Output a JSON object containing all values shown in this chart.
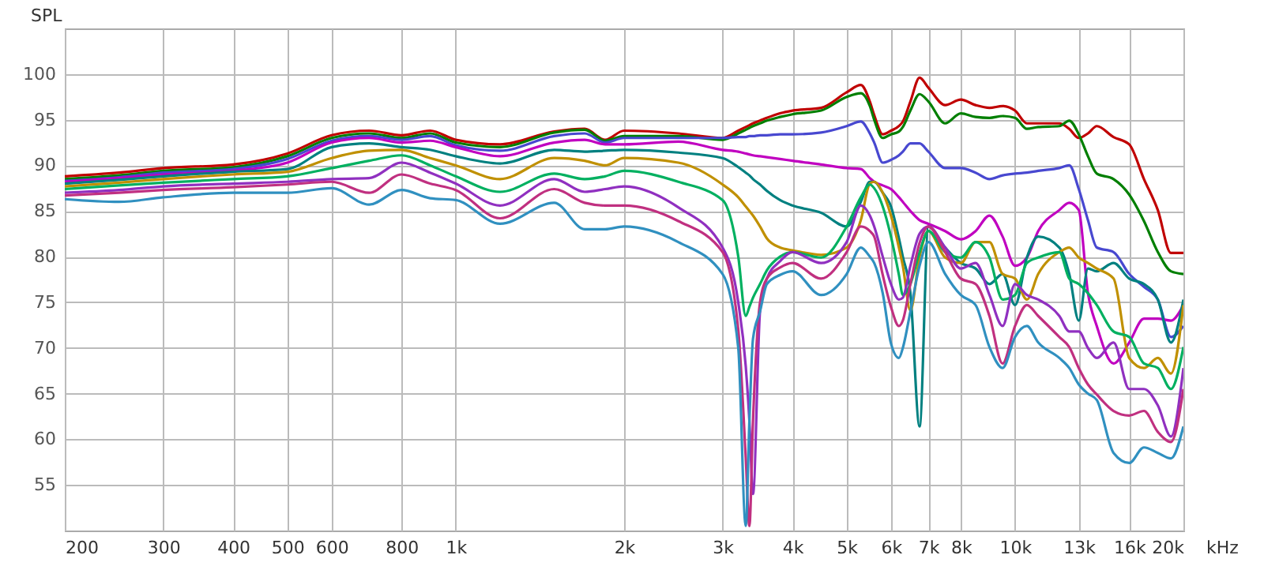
{
  "chart_data": {
    "type": "line",
    "ylabel": "SPL",
    "xlabel": "kHz",
    "log": "x",
    "grid": true,
    "marker": "none",
    "line_style": "solid",
    "xlim": [
      200,
      20000
    ],
    "ylim": [
      50,
      105
    ],
    "xticks": [
      200,
      300,
      400,
      500,
      600,
      800,
      {
        "value": 1000,
        "label": "1k"
      },
      {
        "value": 2000,
        "label": "2k"
      },
      {
        "value": 3000,
        "label": "3k"
      },
      {
        "value": 4000,
        "label": "4k"
      },
      {
        "value": 5000,
        "label": "5k"
      },
      {
        "value": 6000,
        "label": "6k"
      },
      {
        "value": 7000,
        "label": "7k"
      },
      {
        "value": 8000,
        "label": "8k"
      },
      {
        "value": 10000,
        "label": "10k"
      },
      {
        "value": 13000,
        "label": "13k"
      },
      {
        "value": 16000,
        "label": "16k"
      },
      {
        "value": 20000,
        "label": "20k"
      }
    ],
    "yticks": [
      55,
      60,
      65,
      70,
      75,
      80,
      85,
      90,
      95,
      100
    ],
    "x": [
      200,
      250,
      300,
      400,
      500,
      600,
      700,
      800,
      900,
      1000,
      1200,
      1500,
      1700,
      1850,
      2000,
      2500,
      3000,
      3200,
      3300,
      3350,
      3400,
      3500,
      3600,
      3800,
      4000,
      4500,
      5000,
      5300,
      5500,
      5600,
      5800,
      6000,
      6200,
      6300,
      6500,
      6750,
      7000,
      7500,
      8000,
      8500,
      9000,
      9500,
      10000,
      10500,
      11000,
      12000,
      12500,
      13000,
      13500,
      14000,
      15000,
      16000,
      17000,
      18000,
      19000,
      20000
    ],
    "series": [
      {
        "color": "#c00000",
        "values": [
          88.8,
          89.2,
          89.7,
          90.1,
          91.3,
          93.3,
          93.8,
          93.3,
          93.8,
          92.8,
          92.3,
          93.7,
          94,
          92.8,
          93.8,
          93.5,
          93,
          93.8,
          94.2,
          94.4,
          94.6,
          94.9,
          95.2,
          95.7,
          96,
          96.3,
          98,
          98.8,
          97,
          95.5,
          93.4,
          93.8,
          94.3,
          94.8,
          97,
          99.6,
          98.5,
          96.6,
          97.2,
          96.6,
          96.3,
          96.5,
          96,
          94.6,
          94.6,
          94.6,
          94,
          93,
          93.5,
          94.3,
          93.1,
          92.3,
          88.5,
          85.1,
          80.4,
          80.4
        ]
      },
      {
        "color": "#007f00",
        "values": [
          88.5,
          88.9,
          89.4,
          89.8,
          91,
          93,
          93.5,
          93,
          93.5,
          92.5,
          92,
          93.6,
          93.9,
          92.7,
          93.2,
          93.2,
          92.8,
          93.5,
          93.9,
          94.1,
          94.3,
          94.6,
          94.9,
          95.3,
          95.6,
          96,
          97.5,
          97.9,
          96.5,
          95,
          93,
          93.4,
          93.7,
          94.2,
          96,
          97.8,
          97,
          94.6,
          95.7,
          95.3,
          95.2,
          95.4,
          95.2,
          94,
          94.2,
          94.3,
          94.9,
          93.4,
          91,
          89.1,
          88.5,
          86.8,
          83.9,
          80.5,
          78.4,
          78.1
        ]
      },
      {
        "color": "#4848d0",
        "values": [
          88.3,
          88.7,
          89.2,
          89.6,
          90.7,
          92.7,
          93.2,
          92.8,
          93.2,
          92.2,
          91.6,
          93.2,
          93.5,
          92.5,
          93,
          93,
          93,
          93.1,
          93.1,
          93.2,
          93.2,
          93.3,
          93.3,
          93.4,
          93.4,
          93.6,
          94.3,
          94.8,
          93.5,
          92.5,
          90.3,
          90.6,
          91.1,
          91.5,
          92.4,
          92.4,
          91.5,
          89.7,
          89.7,
          89.2,
          88.5,
          88.9,
          89.1,
          89.2,
          89.4,
          89.7,
          90,
          87.4,
          84,
          81,
          80.5,
          78.1,
          76.7,
          75.3,
          71.2,
          72.4
        ]
      },
      {
        "color": "#c000c0",
        "values": [
          88.2,
          88.6,
          89,
          89.4,
          90.3,
          92.5,
          93,
          92.5,
          92.7,
          92,
          91,
          92.5,
          92.8,
          92.3,
          92.3,
          92.6,
          91.7,
          91.5,
          91.3,
          91.2,
          91.1,
          91,
          90.9,
          90.7,
          90.5,
          90.1,
          89.7,
          89.6,
          88.6,
          88.2,
          87.8,
          87.4,
          86.5,
          86,
          85,
          84,
          83.6,
          82.8,
          81.9,
          82.8,
          84.5,
          82.2,
          79,
          79.9,
          82.8,
          85.1,
          85.9,
          85.1,
          76,
          72.4,
          68.3,
          70.6,
          73.2,
          73.2,
          73,
          74.7
        ]
      },
      {
        "color": "#008080",
        "values": [
          88,
          88.4,
          88.8,
          89.3,
          89.6,
          92,
          92.4,
          92,
          91.7,
          91,
          90.2,
          91.7,
          91.5,
          91.6,
          91.7,
          91.4,
          90.8,
          89.8,
          89.2,
          88.9,
          88.5,
          87.9,
          87.2,
          86.2,
          85.6,
          84.8,
          83.3,
          86,
          88.2,
          88.2,
          87,
          85.5,
          82,
          80,
          76,
          61.4,
          83.3,
          81,
          79.3,
          78.7,
          77,
          78.1,
          74.7,
          79.9,
          82.2,
          81,
          78.1,
          73,
          78.7,
          78.4,
          79.3,
          77.6,
          77,
          75.3,
          70.6,
          75.3
        ]
      },
      {
        "color": "#c09000",
        "values": [
          87.7,
          88.1,
          88.5,
          89,
          89.3,
          90.8,
          91.6,
          91.7,
          90.8,
          90,
          88.5,
          90.8,
          90.5,
          90,
          90.8,
          90.3,
          87.9,
          86.5,
          85.5,
          85,
          84.5,
          83.3,
          82,
          81,
          80.7,
          80.2,
          81,
          84,
          88,
          88.2,
          87,
          84.5,
          81,
          79,
          74.1,
          80,
          82.8,
          79.9,
          79.3,
          81.6,
          81.6,
          78.1,
          77.6,
          75.3,
          78.1,
          80.5,
          81,
          79.9,
          79.3,
          78.7,
          77.6,
          68.9,
          67.8,
          68.9,
          67.2,
          74.7
        ]
      },
      {
        "color": "#00b060",
        "values": [
          87.4,
          87.8,
          88.1,
          88.5,
          88.8,
          89.7,
          90.5,
          91.1,
          90,
          88.8,
          87.1,
          89.1,
          88.5,
          88.8,
          89.4,
          88.2,
          86.2,
          80,
          73.5,
          74.5,
          75.5,
          77,
          78.5,
          80,
          80.5,
          79.9,
          83.3,
          86.5,
          87.9,
          87.5,
          85.5,
          82.2,
          78,
          75.8,
          77,
          80.5,
          82.8,
          80.5,
          79.9,
          81.6,
          79.9,
          75.3,
          75.8,
          79.3,
          79.9,
          80.5,
          77.6,
          77,
          76,
          74.7,
          71.8,
          71.2,
          68.3,
          67.8,
          65.5,
          70.1
        ]
      },
      {
        "color": "#9030c0",
        "values": [
          87,
          87.3,
          87.7,
          88,
          88.2,
          88.5,
          88.6,
          90.3,
          89.2,
          88,
          85.6,
          88.5,
          87.1,
          87.4,
          87.7,
          85.4,
          81,
          75,
          68,
          62,
          54,
          74,
          77.6,
          79.5,
          80.5,
          79.3,
          81.6,
          85.6,
          84.5,
          83.3,
          80,
          77,
          75.3,
          75.5,
          79,
          82.5,
          83.3,
          81,
          78.7,
          79.3,
          75.8,
          72.4,
          77,
          75.8,
          75.3,
          73.5,
          71.8,
          71.8,
          70,
          68.9,
          70.6,
          65.5,
          65.5,
          63.7,
          60.3,
          67.8
        ]
      },
      {
        "color": "#c03080",
        "values": [
          86.7,
          87,
          87.3,
          87.6,
          87.9,
          88.2,
          87,
          89,
          88,
          87.3,
          84.2,
          87.4,
          85.9,
          85.6,
          85.6,
          83.9,
          80.5,
          72,
          58,
          50.5,
          62,
          75,
          77.6,
          78.8,
          79.3,
          77.6,
          80.5,
          83.3,
          82.8,
          82.2,
          78,
          74.5,
          72.4,
          73,
          77,
          81.5,
          83.3,
          80.5,
          77.6,
          77,
          73.5,
          68.3,
          72.4,
          74.7,
          73.5,
          71.2,
          70.1,
          67.8,
          66,
          64.9,
          63.1,
          62.6,
          63.1,
          60.8,
          59.7,
          65.5
        ]
      },
      {
        "color": "#3090c0",
        "values": [
          86.3,
          86,
          86.5,
          87,
          87,
          87.5,
          85.7,
          87.3,
          86.4,
          86.2,
          83.6,
          85.9,
          83,
          83,
          83.3,
          81.6,
          78.1,
          70,
          50.5,
          62,
          71,
          74,
          77,
          78,
          78.4,
          75.8,
          78.1,
          81,
          80,
          79.3,
          76,
          70.5,
          68.9,
          70,
          74,
          79,
          81.6,
          78.1,
          75.8,
          74.7,
          70.1,
          67.8,
          71.2,
          72.4,
          70.6,
          68.9,
          67.8,
          66,
          65,
          64.3,
          58.5,
          57.4,
          59.1,
          58.5,
          57.9,
          61.4
        ]
      }
    ]
  }
}
